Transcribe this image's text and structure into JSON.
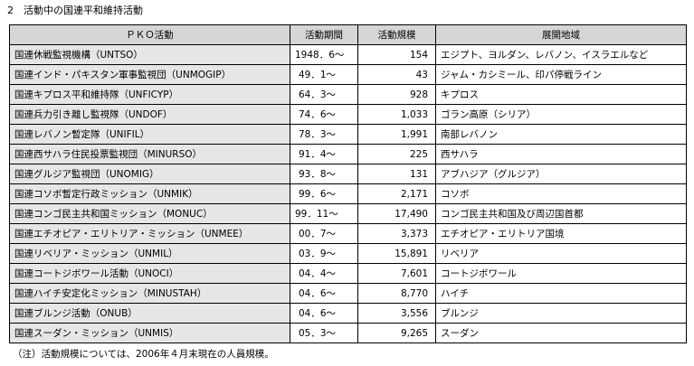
{
  "title": "2　活動中の国連平和維持活動",
  "table": {
    "headers": [
      "ＰＫＯ活動",
      "活動期間",
      "活動規模",
      "展開地域"
    ],
    "rows": [
      {
        "name": "国連休戦監視機構（UNTSO）",
        "period": "1948．6～",
        "size": "154",
        "region": "エジプト、ヨルダン、レバノン、イスラエルなど"
      },
      {
        "name": "国連インド・パキスタン軍事監視団（UNMOGIP）",
        "period": "49．1～",
        "size": "43",
        "region": "ジャム・カシミール、印パ停戦ライン"
      },
      {
        "name": "国連キプロス平和維持隊（UNFICYP）",
        "period": "64．3～",
        "size": "928",
        "region": "キプロス"
      },
      {
        "name": "国連兵力引き離し監視隊（UNDOF）",
        "period": "74．6～",
        "size": "1,033",
        "region": "ゴラン高原（シリア）"
      },
      {
        "name": "国連レバノン暫定隊（UNIFIL）",
        "period": "78．3～",
        "size": "1,991",
        "region": "南部レバノン"
      },
      {
        "name": "国連西サハラ住民投票監視団（MINURSO）",
        "period": "91．4～",
        "size": "225",
        "region": "西サハラ"
      },
      {
        "name": "国連グルジア監視団（UNOMIG）",
        "period": "93．8～",
        "size": "131",
        "region": "アブハジア（グルジア）"
      },
      {
        "name": "国連コソボ暫定行政ミッション（UNMIK）",
        "period": "99．6～",
        "size": "2,171",
        "region": "コソボ"
      },
      {
        "name": "国連コンゴ民主共和国ミッション（MONUC）",
        "period": "99．11～",
        "size": "17,490",
        "region": "コンゴ民主共和国及び周辺国首都"
      },
      {
        "name": "国連エチオピア・エリトリア・ミッション（UNMEE）",
        "period": "00．7～",
        "size": "3,373",
        "region": "エチオピア・エリトリア国境"
      },
      {
        "name": "国連リベリア・ミッション（UNMIL）",
        "period": "03．9～",
        "size": "15,891",
        "region": "リベリア"
      },
      {
        "name": "国連コートジボワール活動（UNOCI）",
        "period": "04．4～",
        "size": "7,601",
        "region": "コートジボワール"
      },
      {
        "name": "国連ハイチ安定化ミッション（MINUSTAH）",
        "period": "04．6～",
        "size": "8,770",
        "region": "ハイチ"
      },
      {
        "name": "国連ブルンジ活動（ONUB）",
        "period": "04．6～",
        "size": "3,556",
        "region": "ブルンジ"
      },
      {
        "name": "国連スーダン・ミッション（UNMIS）",
        "period": "05．3～",
        "size": "9,265",
        "region": "スーダン"
      }
    ]
  },
  "note": "（注）活動規模については、2006年４月末現在の人員規模。"
}
